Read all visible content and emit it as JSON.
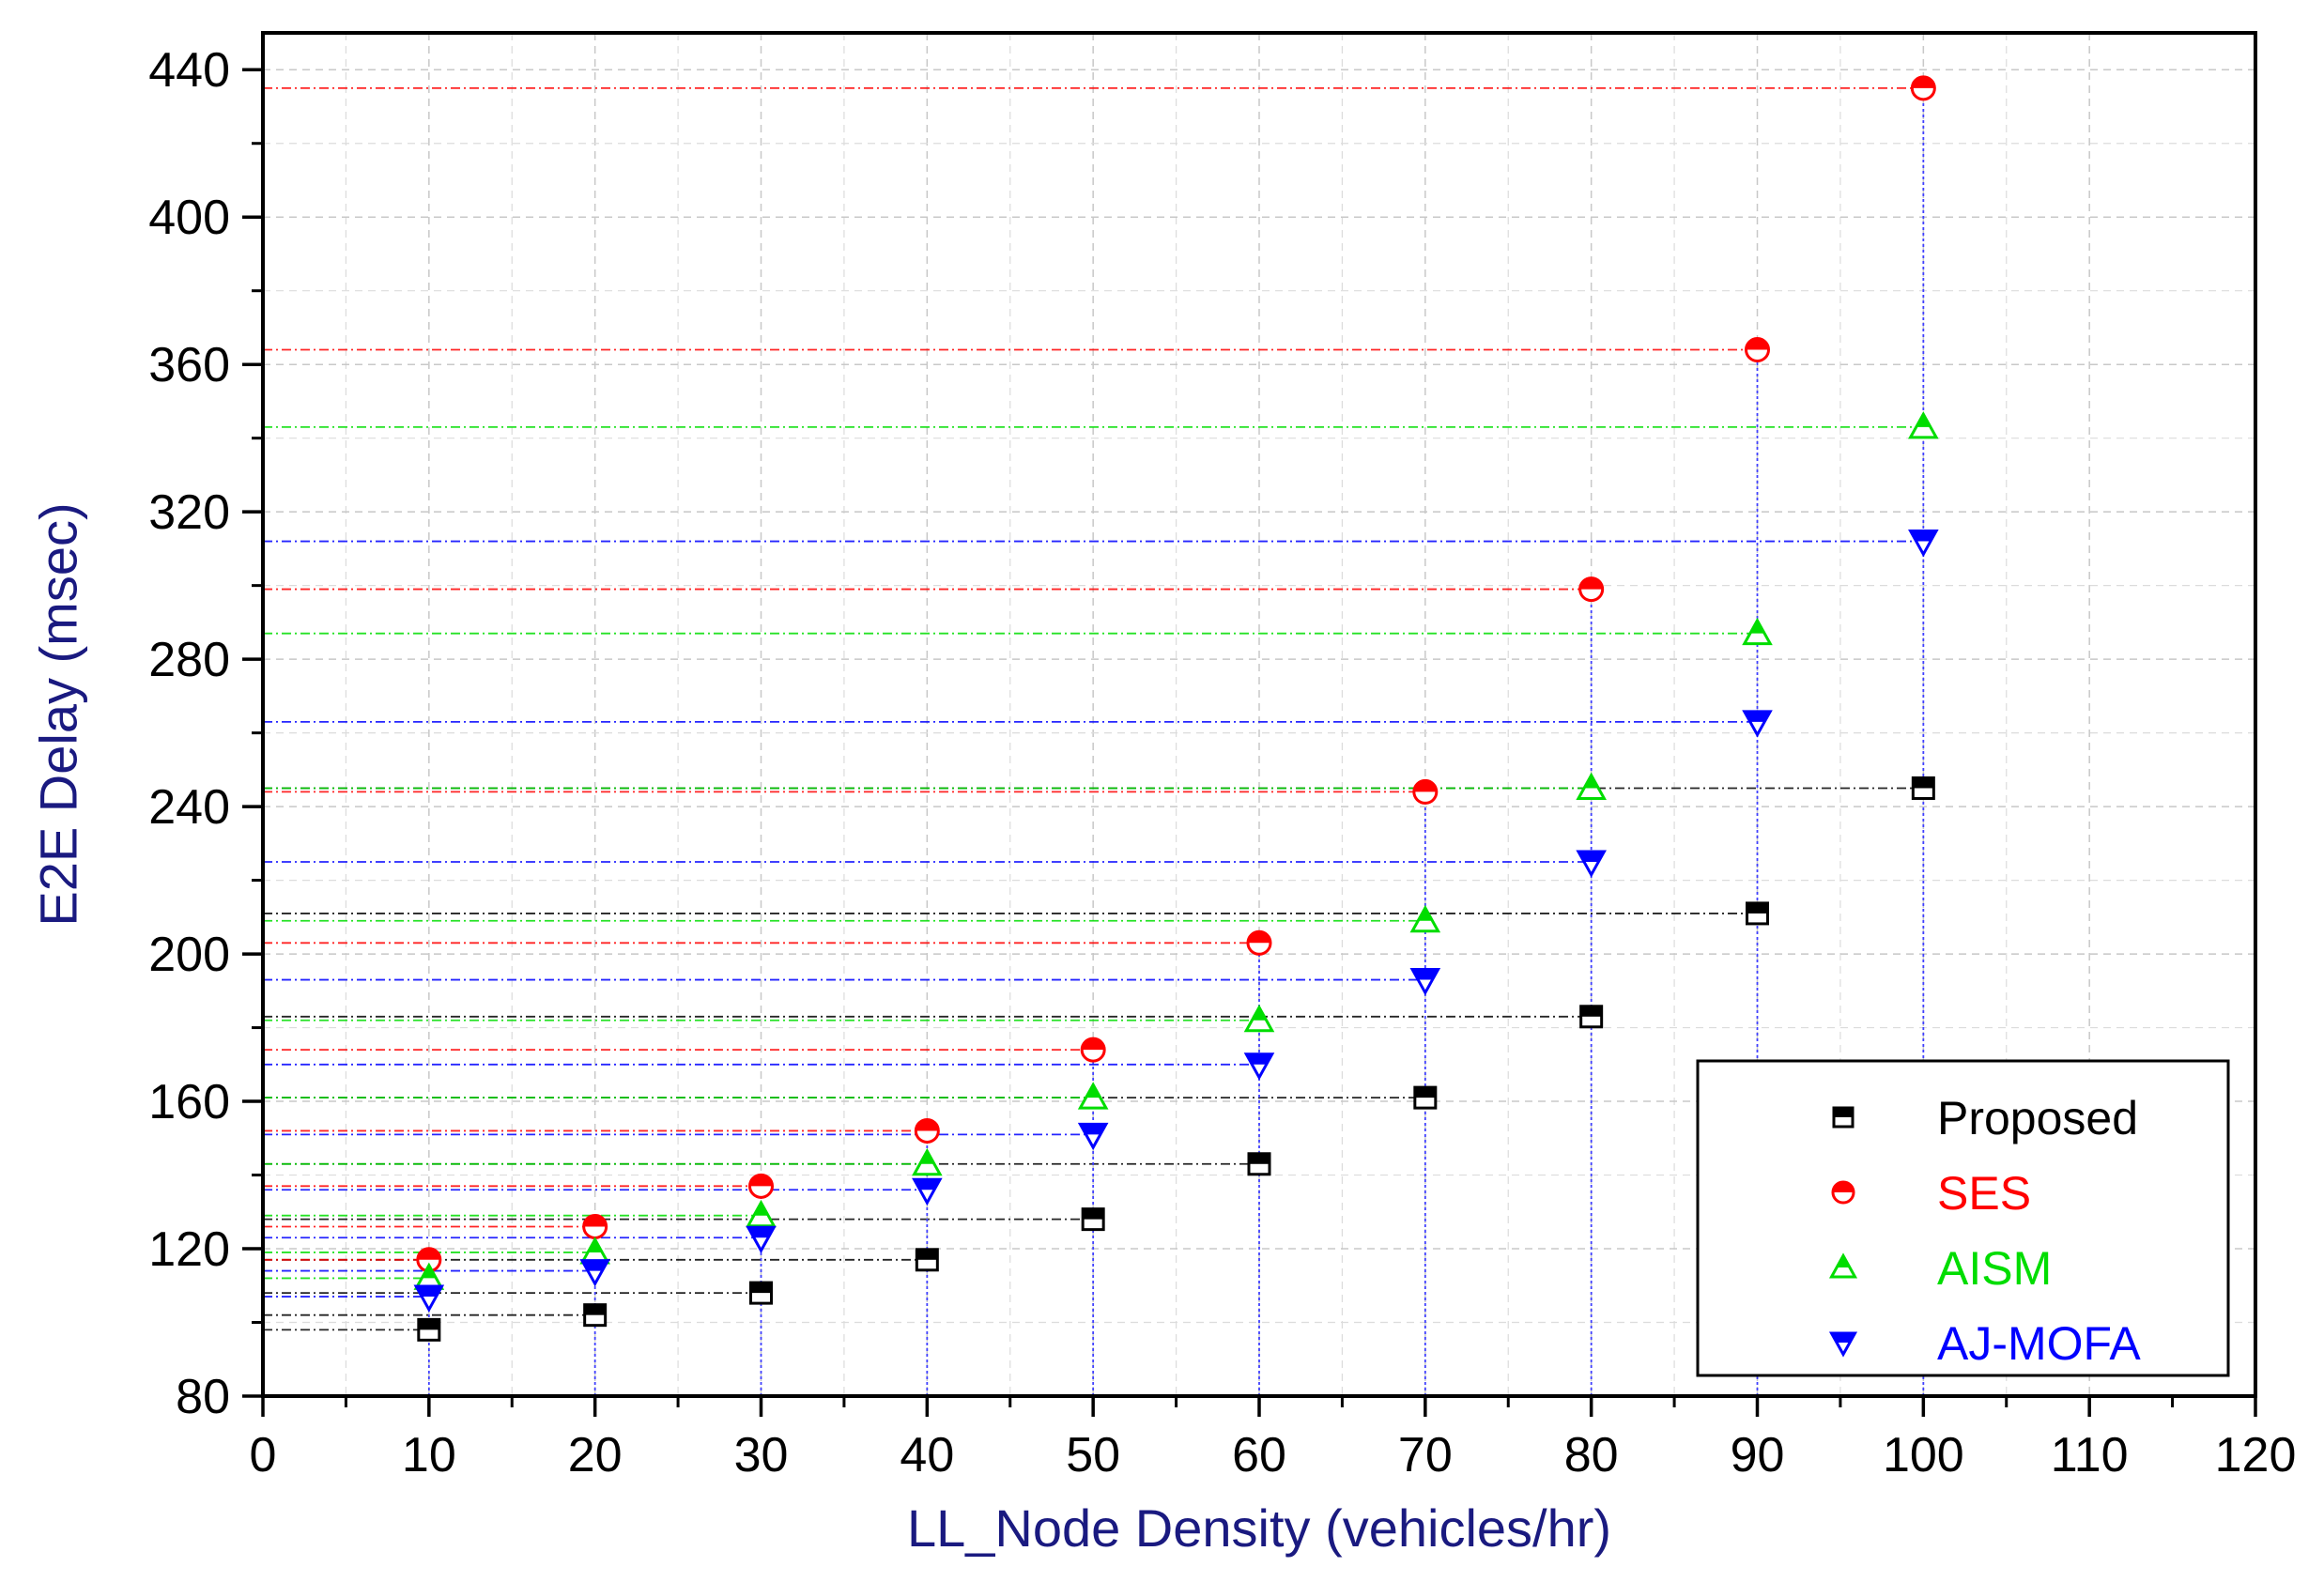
{
  "chart_data": {
    "type": "scatter",
    "title": "",
    "xlabel": "LL_Node Density (vehicles/hr)",
    "ylabel": "E2E Delay (msec)",
    "xlim": [
      0,
      120
    ],
    "ylim": [
      80,
      450
    ],
    "xticks": [
      0,
      10,
      20,
      30,
      40,
      50,
      60,
      70,
      80,
      90,
      100,
      110,
      120
    ],
    "yticks": [
      80,
      120,
      160,
      200,
      240,
      280,
      320,
      360,
      400,
      440
    ],
    "grid": true,
    "drop_lines": true,
    "legend_position": "bottom-right",
    "x": [
      10,
      20,
      30,
      40,
      50,
      60,
      70,
      80,
      90,
      100
    ],
    "series": [
      {
        "name": "Proposed",
        "color": "#000000",
        "marker": "square",
        "values": [
          98,
          102,
          108,
          117,
          128,
          143,
          161,
          183,
          211,
          245
        ]
      },
      {
        "name": "SES",
        "color": "#ff0000",
        "marker": "circle",
        "values": [
          117,
          126,
          137,
          152,
          174,
          203,
          244,
          299,
          364,
          435
        ]
      },
      {
        "name": "AISM",
        "color": "#00dd00",
        "marker": "triangle-up",
        "values": [
          112,
          119,
          129,
          143,
          161,
          182,
          209,
          245,
          287,
          343
        ]
      },
      {
        "name": "AJ-MOFA",
        "color": "#0000ff",
        "marker": "triangle-down",
        "values": [
          107,
          114,
          123,
          136,
          151,
          170,
          193,
          225,
          263,
          312
        ]
      }
    ]
  }
}
